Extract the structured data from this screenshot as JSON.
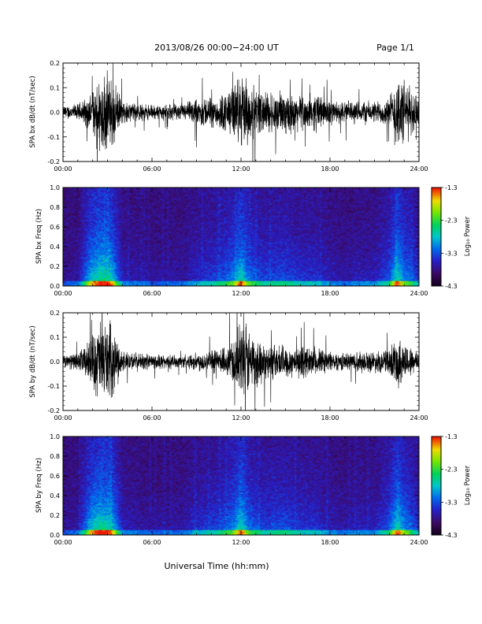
{
  "header": {
    "title": "2013/08/26  00:00−24:00 UT",
    "page": "Page 1/1"
  },
  "colors": {
    "trace": "#000000",
    "background": "#ffffff"
  },
  "chart_data": [
    {
      "type": "line",
      "ylabel": "SPA bx dB/dt (nT/sec)",
      "xlim": [
        0,
        24
      ],
      "ylim": [
        -0.2,
        0.2
      ],
      "xtick_labels": [
        "00:00",
        "06:00",
        "12:00",
        "18:00",
        "24:00"
      ],
      "ytick_labels": [
        "-0.2",
        "-0.1",
        "0.0",
        "0.1",
        "0.2"
      ],
      "envelope": {
        "description_hours": [
          0,
          1,
          1.8,
          2.5,
          3.2,
          4,
          6,
          8,
          9.5,
          10.5,
          11.5,
          12,
          12.5,
          13.5,
          15,
          16,
          17,
          18,
          19,
          20,
          21,
          22,
          22.6,
          23,
          24
        ],
        "amplitude": [
          0.03,
          0.04,
          0.08,
          0.2,
          0.18,
          0.05,
          0.035,
          0.04,
          0.07,
          0.08,
          0.12,
          0.2,
          0.13,
          0.1,
          0.1,
          0.08,
          0.09,
          0.06,
          0.05,
          0.06,
          0.05,
          0.07,
          0.2,
          0.15,
          0.08
        ]
      }
    },
    {
      "type": "heatmap",
      "ylabel": "SPA bx Freq (Hz)",
      "xlim": [
        0,
        24
      ],
      "ylim": [
        0,
        1
      ],
      "xtick_labels": [
        "00:00",
        "06:00",
        "12:00",
        "18:00",
        "24:00"
      ],
      "ytick_labels": [
        "0.0",
        "0.2",
        "0.4",
        "0.6",
        "0.8",
        "1.0"
      ],
      "colorbar": {
        "label": "Log₁₀ Power",
        "range": [
          -4.3,
          -1.3
        ],
        "tick_labels": [
          "-1.3",
          "-2.3",
          "-3.3",
          "-4.3"
        ]
      }
    },
    {
      "type": "line",
      "ylabel": "SPA by dB/dt (nT/sec)",
      "xlim": [
        0,
        24
      ],
      "ylim": [
        -0.2,
        0.2
      ],
      "xtick_labels": [
        "00:00",
        "06:00",
        "12:00",
        "18:00",
        "24:00"
      ],
      "ytick_labels": [
        "-0.2",
        "-0.1",
        "0.0",
        "0.1",
        "0.2"
      ],
      "envelope": {
        "description_hours": [
          0,
          1,
          1.8,
          2.5,
          3.2,
          4,
          6,
          8,
          9.5,
          10.5,
          11.5,
          12,
          12.5,
          13.5,
          15,
          16,
          17,
          18,
          19,
          20,
          21,
          22,
          22.6,
          23,
          24
        ],
        "amplitude": [
          0.03,
          0.04,
          0.1,
          0.2,
          0.18,
          0.05,
          0.035,
          0.03,
          0.05,
          0.06,
          0.1,
          0.2,
          0.16,
          0.09,
          0.08,
          0.07,
          0.07,
          0.05,
          0.04,
          0.05,
          0.05,
          0.06,
          0.13,
          0.09,
          0.05
        ]
      }
    },
    {
      "type": "heatmap",
      "ylabel": "SPA by Freq (Hz)",
      "xlim": [
        0,
        24
      ],
      "ylim": [
        0,
        1
      ],
      "xtick_labels": [
        "00:00",
        "06:00",
        "12:00",
        "18:00",
        "24:00"
      ],
      "ytick_labels": [
        "0.0",
        "0.2",
        "0.4",
        "0.6",
        "0.8",
        "1.0"
      ],
      "colorbar": {
        "label": "Log₁₀ Power",
        "range": [
          -4.3,
          -1.3
        ],
        "tick_labels": [
          "-1.3",
          "-2.3",
          "-3.3",
          "-4.3"
        ]
      }
    }
  ],
  "xlabel": "Universal Time (hh:mm)"
}
